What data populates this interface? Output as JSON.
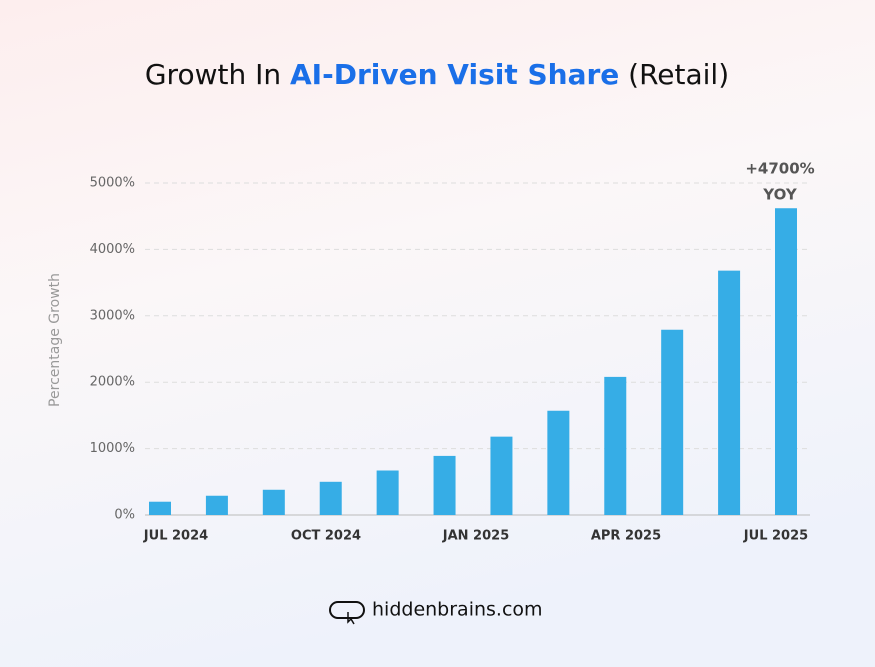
{
  "chart_data": {
    "type": "bar",
    "title": [
      "Growth  In",
      "AI-Driven Visit Share",
      "(Retail)"
    ],
    "y_label": "Percentage Growth",
    "x_labels": [
      "JUL 2024",
      "OCT 2024",
      "JAN 2025",
      "APR 2025",
      "JUL 2025"
    ],
    "values": [
      200,
      290,
      380,
      500,
      670,
      890,
      1180,
      1570,
      2080,
      2790,
      3680,
      4620
    ],
    "color": "#36ade6",
    "ylim": [
      0,
      5000
    ],
    "yticks": [
      {
        "value": 0,
        "label": "0%"
      },
      {
        "value": 1000,
        "label": "1000%"
      },
      {
        "value": 2000,
        "label": "2000%"
      },
      {
        "value": 3000,
        "label": "3000%"
      },
      {
        "value": 4000,
        "label": "4000%"
      },
      {
        "value": 5000,
        "label": "5000%"
      }
    ],
    "grid": true,
    "annotation": [
      "+4700%",
      "YOY"
    ],
    "footer": "hiddenbrains.com"
  }
}
